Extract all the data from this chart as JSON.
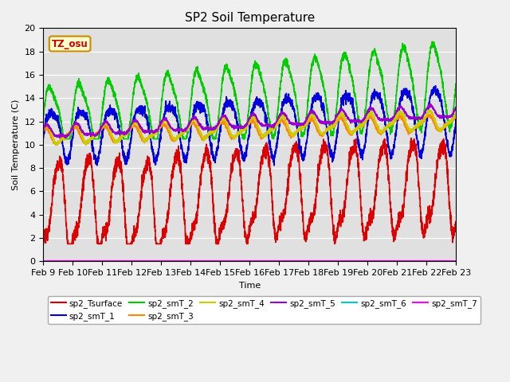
{
  "title": "SP2 Soil Temperature",
  "xlabel": "Time",
  "ylabel": "Soil Temperature (C)",
  "ylim": [
    0,
    20
  ],
  "x_tick_labels": [
    "Feb 9",
    "Feb 10",
    "Feb 11",
    "Feb 12",
    "Feb 13",
    "Feb 14",
    "Feb 15",
    "Feb 16",
    "Feb 17",
    "Feb 18",
    "Feb 19",
    "Feb 20",
    "Feb 21",
    "Feb 22",
    "Feb 23"
  ],
  "annotation_text": "TZ_osu",
  "annotation_color": "#cc0000",
  "annotation_bg": "#ffffcc",
  "annotation_border": "#cc8800",
  "series": {
    "sp2_Tsurface": {
      "color": "#dd0000",
      "lw": 1.2
    },
    "sp2_smT_1": {
      "color": "#0000dd",
      "lw": 1.2
    },
    "sp2_smT_2": {
      "color": "#00cc00",
      "lw": 1.2
    },
    "sp2_smT_3": {
      "color": "#ff8800",
      "lw": 1.2
    },
    "sp2_smT_4": {
      "color": "#cccc00",
      "lw": 1.2
    },
    "sp2_smT_5": {
      "color": "#9900cc",
      "lw": 1.2
    },
    "sp2_smT_6": {
      "color": "#00cccc",
      "lw": 1.2
    },
    "sp2_smT_7": {
      "color": "#ff00ff",
      "lw": 1.2
    }
  }
}
